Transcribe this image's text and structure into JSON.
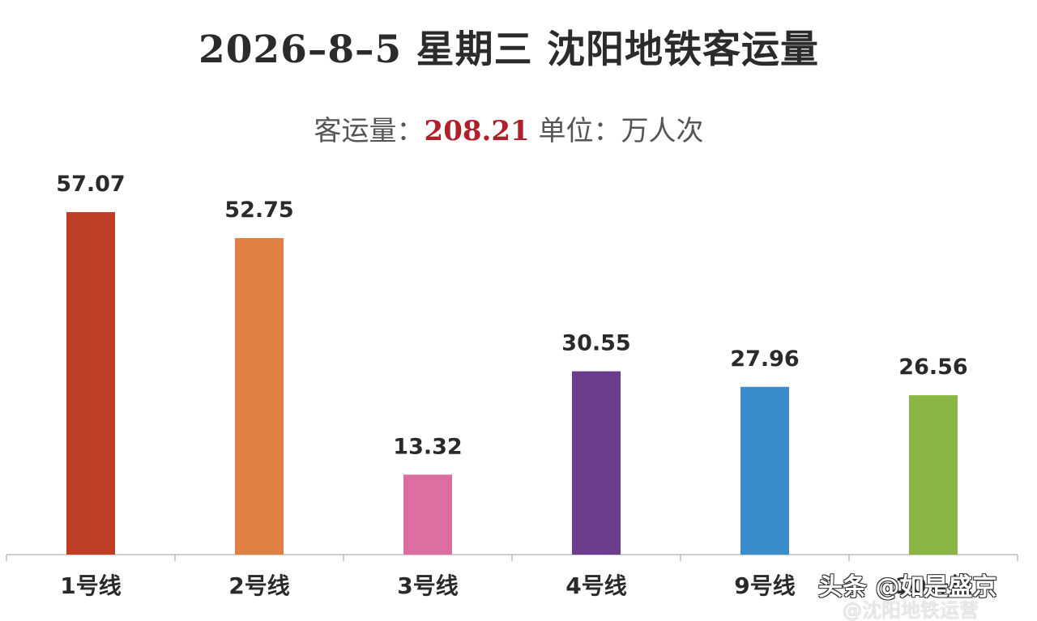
{
  "title": "2026–8–5 星期三 沈阳地铁客运量",
  "subtitle": {
    "prefix": "客运量：",
    "total": "208.21",
    "unit_label": " 单位：万人次"
  },
  "watermark": {
    "primary": "头条 @如是盛京",
    "secondary": "@沈阳地铁运营"
  },
  "chart_data": {
    "type": "bar",
    "title": "2026–8–5 星期三 沈阳地铁客运量",
    "ylabel": "",
    "xlabel": "",
    "categories": [
      "1号线",
      "2号线",
      "3号线",
      "4号线",
      "9号线",
      "10号线"
    ],
    "values": [
      57.07,
      52.75,
      13.32,
      30.55,
      27.96,
      26.56
    ],
    "value_labels": [
      "57.07",
      "52.75",
      "13.32",
      "30.55",
      "27.96",
      "26.56"
    ],
    "colors": [
      "#be3f27",
      "#e08143",
      "#db6fa1",
      "#6b3d8c",
      "#3a8dcb",
      "#8bb645"
    ],
    "ylim": [
      0,
      57.07
    ],
    "grid": false
  }
}
